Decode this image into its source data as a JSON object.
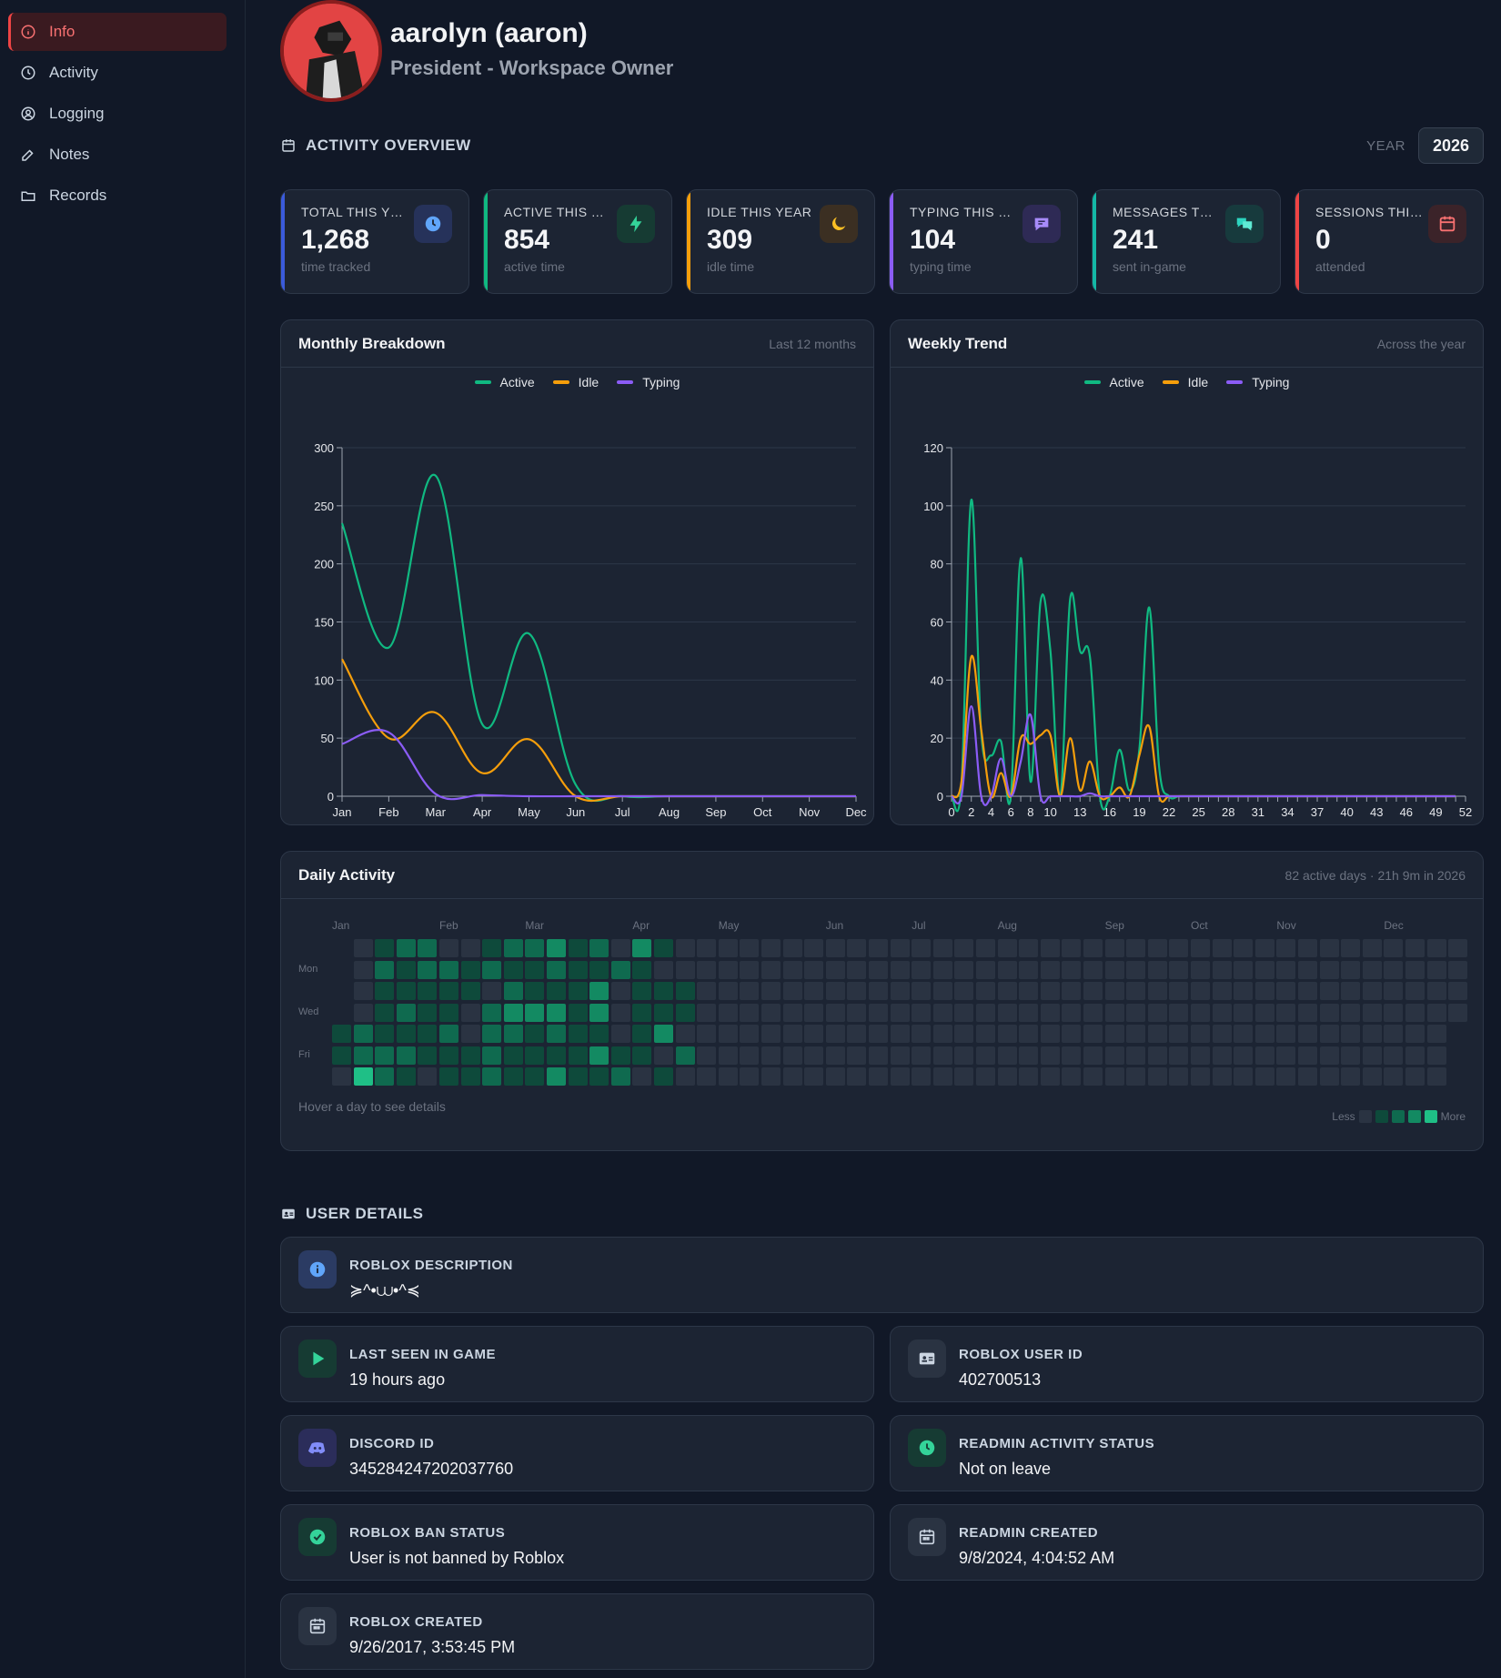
{
  "sidebar": {
    "items": [
      {
        "label": "Info",
        "icon": "info-icon",
        "active": true
      },
      {
        "label": "Activity",
        "icon": "clock-icon"
      },
      {
        "label": "Logging",
        "icon": "user-circle-icon"
      },
      {
        "label": "Notes",
        "icon": "pencil-icon"
      },
      {
        "label": "Records",
        "icon": "folder-icon"
      }
    ]
  },
  "profile": {
    "name": "aarolyn (aaron)",
    "role": "President - Workspace Owner"
  },
  "overview": {
    "title": "ACTIVITY OVERVIEW",
    "year_label": "YEAR",
    "year_value": "2026"
  },
  "stats": [
    {
      "label": "TOTAL THIS YEAR",
      "value": "1,268",
      "sub": "time tracked",
      "color": "#3b5bdb",
      "icon": "clock-icon"
    },
    {
      "label": "ACTIVE THIS YEAR",
      "value": "854",
      "sub": "active time",
      "color": "#10b981",
      "icon": "bolt-icon"
    },
    {
      "label": "IDLE THIS YEAR",
      "value": "309",
      "sub": "idle time",
      "color": "#f59e0b",
      "icon": "moon-icon"
    },
    {
      "label": "TYPING THIS YEAR",
      "value": "104",
      "sub": "typing time",
      "color": "#8b5cf6",
      "icon": "chat-icon"
    },
    {
      "label": "MESSAGES THIS YEAR",
      "value": "241",
      "sub": "sent in-game",
      "color": "#14b8a6",
      "icon": "chat-bubbles-icon"
    },
    {
      "label": "SESSIONS THIS YEAR",
      "value": "0",
      "sub": "attended",
      "color": "#ef4444",
      "icon": "calendar-icon"
    }
  ],
  "monthly": {
    "title": "Monthly Breakdown",
    "subtitle": "Last 12 months"
  },
  "weekly": {
    "title": "Weekly Trend",
    "subtitle": "Across the year"
  },
  "chart_data": [
    {
      "type": "line",
      "title": "Monthly Breakdown",
      "categories": [
        "Jan",
        "Feb",
        "Mar",
        "Apr",
        "May",
        "Jun",
        "Jul",
        "Aug",
        "Sep",
        "Oct",
        "Nov",
        "Dec"
      ],
      "series": [
        {
          "name": "Active",
          "color": "#10b981",
          "values": [
            235,
            128,
            276,
            62,
            140,
            10,
            0,
            0,
            0,
            0,
            0,
            0
          ]
        },
        {
          "name": "Idle",
          "color": "#f59e0b",
          "values": [
            118,
            50,
            72,
            20,
            49,
            0,
            0,
            0,
            0,
            0,
            0,
            0
          ]
        },
        {
          "name": "Typing",
          "color": "#8b5cf6",
          "values": [
            45,
            55,
            2,
            1,
            0,
            0,
            0,
            0,
            0,
            0,
            0,
            0
          ]
        }
      ],
      "ylim": [
        0,
        300
      ],
      "yticks": [
        0,
        50,
        100,
        150,
        200,
        250,
        300
      ],
      "grid": true,
      "legend": "top-center"
    },
    {
      "type": "line",
      "title": "Weekly Trend",
      "x": [
        0,
        1,
        2,
        3,
        4,
        5,
        6,
        7,
        8,
        9,
        10,
        11,
        12,
        13,
        14,
        15,
        16,
        17,
        18,
        19,
        20,
        21,
        22,
        23,
        24,
        25,
        26,
        27,
        28,
        29,
        30,
        31,
        32,
        33,
        34,
        35,
        36,
        37,
        38,
        39,
        40,
        41,
        42,
        43,
        44,
        45,
        46,
        47,
        48,
        49,
        50,
        51,
        52,
        53
      ],
      "xtick_labels": [
        "0",
        "2",
        "4",
        "6",
        "8",
        "10",
        "13",
        "16",
        "19",
        "22",
        "25",
        "28",
        "31",
        "34",
        "37",
        "40",
        "43",
        "46",
        "49",
        "52"
      ],
      "xtick_positions": [
        0,
        2,
        4,
        6,
        8,
        10,
        13,
        16,
        19,
        22,
        25,
        28,
        31,
        34,
        37,
        40,
        43,
        46,
        49,
        52
      ],
      "series": [
        {
          "name": "Active",
          "color": "#10b981",
          "values": [
            0,
            4,
            102,
            22,
            14,
            19,
            0,
            82,
            5,
            67,
            50,
            0,
            68,
            50,
            48,
            0,
            0,
            16,
            2,
            16,
            65,
            10,
            0,
            0,
            0,
            0,
            0,
            0,
            0,
            0,
            0,
            0,
            0,
            0,
            0,
            0,
            0,
            0,
            0,
            0,
            0,
            0,
            0,
            0,
            0,
            0,
            0,
            0,
            0,
            0,
            0,
            0,
            0,
            0
          ]
        },
        {
          "name": "Idle",
          "color": "#f59e0b",
          "values": [
            0,
            5,
            48,
            23,
            0,
            8,
            0,
            20,
            18,
            21,
            21,
            0,
            20,
            2,
            12,
            0,
            0,
            3,
            0,
            14,
            24,
            0,
            0,
            0,
            0,
            0,
            0,
            0,
            0,
            0,
            0,
            0,
            0,
            0,
            0,
            0,
            0,
            0,
            0,
            0,
            0,
            0,
            0,
            0,
            0,
            0,
            0,
            0,
            0,
            0,
            0,
            0,
            0,
            0
          ]
        },
        {
          "name": "Typing",
          "color": "#8b5cf6",
          "values": [
            0,
            0,
            31,
            0,
            0,
            13,
            0,
            12,
            28,
            0,
            0,
            0,
            0,
            0,
            1,
            0,
            0,
            0,
            0,
            0,
            0,
            0,
            0,
            0,
            0,
            0,
            0,
            0,
            0,
            0,
            0,
            0,
            0,
            0,
            0,
            0,
            0,
            0,
            0,
            0,
            0,
            0,
            0,
            0,
            0,
            0,
            0,
            0,
            0,
            0,
            0,
            0,
            0,
            0
          ]
        }
      ],
      "ylim": [
        0,
        120
      ],
      "yticks": [
        0,
        20,
        40,
        60,
        80,
        100,
        120
      ],
      "grid": true,
      "legend": "top-center"
    }
  ],
  "heatmap": {
    "title": "Daily Activity",
    "subtitle": "82 active days · 21h 9m in 2026",
    "months": [
      "Jan",
      "Feb",
      "Mar",
      "Apr",
      "May",
      "Jun",
      "Jul",
      "Aug",
      "Sep",
      "Oct",
      "Nov",
      "Dec"
    ],
    "month_weeks": [
      0,
      5,
      9,
      14,
      18,
      23,
      27,
      31,
      36,
      40,
      44,
      49
    ],
    "day_labels": [
      "Mon",
      "Wed",
      "Fri"
    ],
    "day_rows": [
      1,
      3,
      5
    ],
    "hint": "Hover a day to see details",
    "legend_less": "Less",
    "legend_more": "More",
    "colors": [
      "#2a3342",
      "#0e4a3b",
      "#0f6a4f",
      "#138a62",
      "#1fbf86"
    ],
    "levels": [
      "0122001223120310",
      "0212212112112100",
      "0111110211130111",
      "0121102333130111",
      "12111202212110130",
      "12221112111131102",
      "0421011211311201"
    ]
  },
  "details": {
    "title": "USER DETAILS",
    "items": [
      {
        "label": "ROBLOX DESCRIPTION",
        "value": "≽^•⩊•^≼",
        "icon": "info-icon",
        "color": "#2b3b63",
        "fg": "#60a5fa"
      },
      {
        "label": "LAST SEEN IN GAME",
        "value": "19 hours ago",
        "icon": "play-icon",
        "color": "#163b33",
        "fg": "#34d399"
      },
      {
        "label": "ROBLOX USER ID",
        "value": "402700513",
        "icon": "id-card-icon",
        "color": "#2a3342",
        "fg": "#cbd5e1"
      },
      {
        "label": "DISCORD ID",
        "value": "345284247202037760",
        "icon": "discord-icon",
        "color": "#2b2d5a",
        "fg": "#818cf8"
      },
      {
        "label": "READMIN ACTIVITY STATUS",
        "value": "Not on leave",
        "icon": "clock-icon",
        "color": "#163b33",
        "fg": "#34d399"
      },
      {
        "label": "ROBLOX BAN STATUS",
        "value": "User is not banned by Roblox",
        "icon": "check-badge-icon",
        "color": "#163b33",
        "fg": "#34d399"
      },
      {
        "label": "READMIN CREATED",
        "value": "9/8/2024, 4:04:52 AM",
        "icon": "calendar-icon",
        "color": "#2a3342",
        "fg": "#cbd5e1"
      },
      {
        "label": "ROBLOX CREATED",
        "value": "9/26/2017, 3:53:45 PM",
        "icon": "calendar-icon",
        "color": "#2a3342",
        "fg": "#cbd5e1"
      }
    ]
  }
}
